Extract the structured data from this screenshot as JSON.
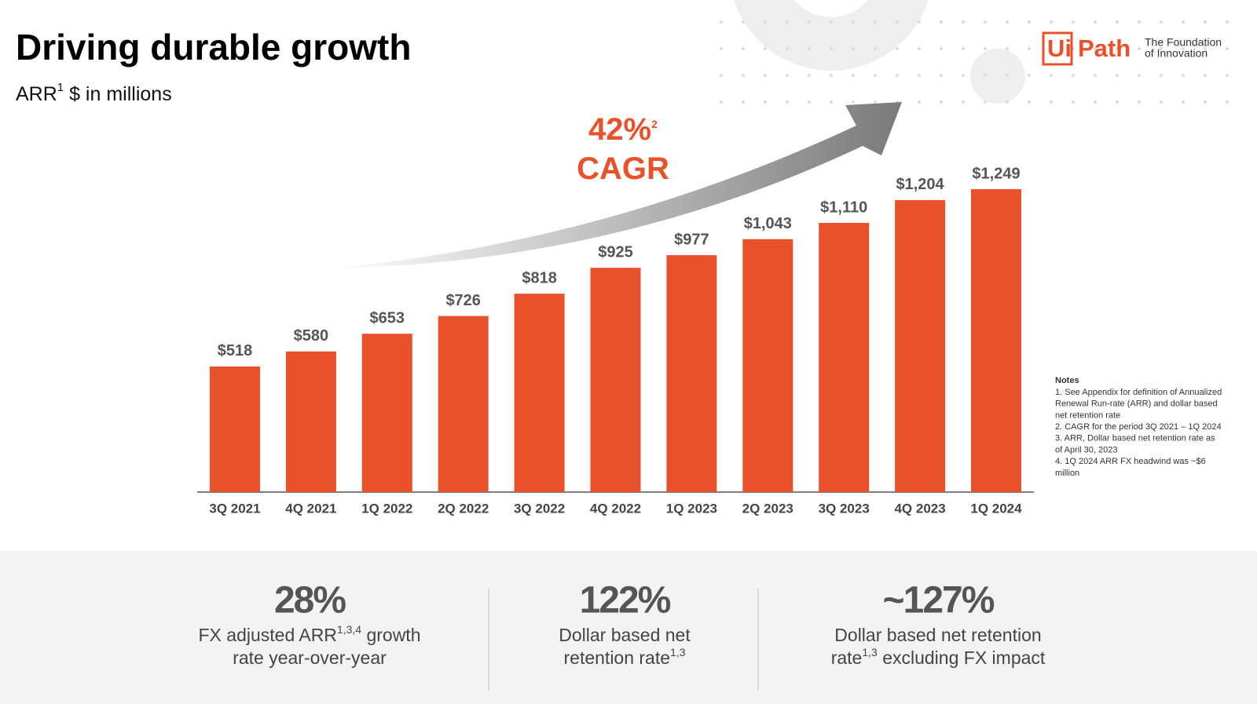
{
  "title": "Driving durable growth",
  "subtitle": [
    "ARR",
    "1",
    " $ in millions"
  ],
  "logo": {
    "brand_left": "Ui",
    "brand_right": "Path",
    "tagline": [
      "The Foundation",
      "of Innovation"
    ]
  },
  "chart_data": {
    "type": "bar",
    "categories": [
      "3Q 2021",
      "4Q 2021",
      "1Q 2022",
      "2Q 2022",
      "3Q 2022",
      "4Q 2022",
      "1Q 2023",
      "2Q 2023",
      "3Q 2023",
      "4Q 2023",
      "1Q 2024"
    ],
    "values": [
      518,
      580,
      653,
      726,
      818,
      925,
      977,
      1043,
      1110,
      1204,
      1249
    ],
    "value_labels": [
      "$518",
      "$580",
      "$653",
      "$726",
      "$818",
      "$925",
      "$977",
      "$1,043",
      "$1,110",
      "$1,204",
      "$1,249"
    ],
    "color": "#e8522b",
    "annotation": [
      [
        "42%",
        "2"
      ],
      [
        "CAGR"
      ]
    ]
  },
  "notes": {
    "title": "Notes",
    "lines": [
      "1. See Appendix for definition of Annualized",
      "Renewal Run-rate (ARR) and dollar based",
      "net retention rate",
      "2. CAGR for the period 3Q 2021 – 1Q 2024",
      "3. ARR, Dollar based net retention rate as",
      "of April 30, 2023",
      "4. 1Q 2024 ARR FX headwind was ~$6",
      "million"
    ]
  },
  "stats": [
    {
      "value": "28%",
      "lines": [
        [
          "FX adjusted ARR",
          "1,3,4",
          " growth"
        ],
        [
          "rate year-over-year"
        ]
      ]
    },
    {
      "value": "122%",
      "lines": [
        [
          "Dollar based net"
        ],
        [
          "retention rate",
          "1,3"
        ]
      ]
    },
    {
      "value": "~127%",
      "lines": [
        [
          "Dollar based net retention"
        ],
        [
          "rate",
          "1,3",
          " excluding FX impact"
        ]
      ]
    }
  ]
}
